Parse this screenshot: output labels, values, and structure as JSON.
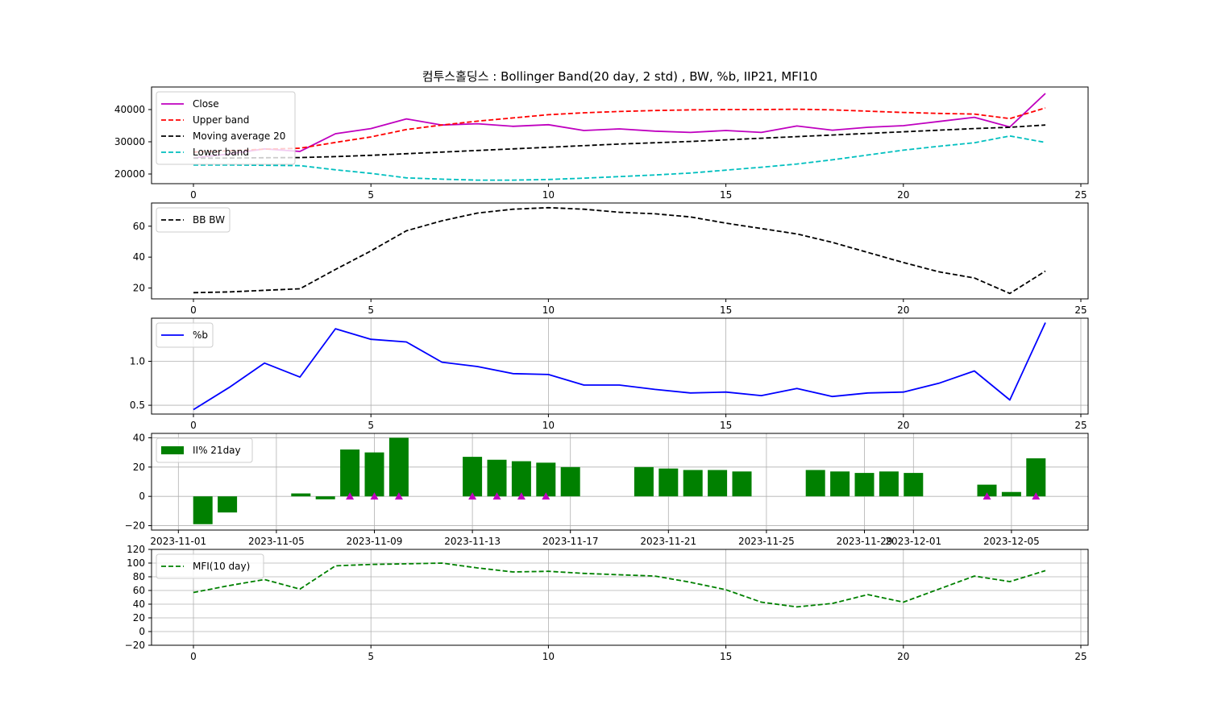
{
  "title": "컴투스홀딩스 : Bollinger Band(20 day, 2 std) , BW, %b, IIP21, MFI10",
  "colors": {
    "close": "#bf00bf",
    "upper": "#ff0000",
    "ma": "#000000",
    "lower": "#00bfbf",
    "bw": "#000000",
    "pb": "#0000ff",
    "ii": "#008000",
    "marker": "#bf00bf",
    "mfi": "#008000"
  },
  "chart_data": [
    {
      "type": "line",
      "x": [
        0,
        1,
        2,
        3,
        4,
        5,
        6,
        7,
        8,
        9,
        10,
        11,
        12,
        13,
        14,
        15,
        16,
        17,
        18,
        19,
        20,
        21,
        22,
        23,
        24
      ],
      "series": [
        {
          "name": "Close",
          "style": "solid",
          "values": [
            25000,
            26200,
            27800,
            27000,
            32500,
            34100,
            37100,
            35200,
            35600,
            34800,
            35300,
            33500,
            34000,
            33300,
            32900,
            33500,
            32900,
            34900,
            33600,
            34500,
            35000,
            36300,
            37600,
            34600,
            45000
          ]
        },
        {
          "name": "Upper band",
          "style": "dashed",
          "values": [
            26800,
            27200,
            27700,
            28000,
            29800,
            31500,
            33800,
            35200,
            36400,
            37400,
            38400,
            39000,
            39400,
            39700,
            39900,
            40000,
            40000,
            40100,
            39900,
            39500,
            39100,
            38800,
            38600,
            37200,
            40500
          ]
        },
        {
          "name": "Moving average 20",
          "style": "dashed",
          "values": [
            24900,
            24950,
            25050,
            25100,
            25400,
            25800,
            26300,
            26800,
            27300,
            27800,
            28300,
            28800,
            29300,
            29700,
            30100,
            30600,
            31100,
            31600,
            32100,
            32600,
            33100,
            33600,
            34100,
            34500,
            35200
          ]
        },
        {
          "name": "Lower band",
          "style": "dashed",
          "values": [
            22800,
            22800,
            22700,
            22600,
            21300,
            20200,
            18800,
            18400,
            18100,
            18100,
            18300,
            18700,
            19200,
            19700,
            20300,
            21200,
            22100,
            23100,
            24400,
            25900,
            27400,
            28600,
            29700,
            31800,
            29800
          ]
        }
      ],
      "ylim": [
        17000,
        47000
      ],
      "yticks": [
        "20000",
        "30000",
        "40000"
      ],
      "xticks": [
        "0",
        "5",
        "10",
        "15",
        "20",
        "25"
      ],
      "legend": "top-left",
      "grid": false
    },
    {
      "type": "line",
      "x": [
        0,
        1,
        2,
        3,
        4,
        5,
        6,
        7,
        8,
        9,
        10,
        11,
        12,
        13,
        14,
        15,
        16,
        17,
        18,
        19,
        20,
        21,
        22,
        23,
        24
      ],
      "series": [
        {
          "name": "BB BW",
          "style": "dashed",
          "values": [
            17,
            17.5,
            18.5,
            19.5,
            32,
            44,
            57,
            63.5,
            68.5,
            71,
            72,
            71,
            69,
            68,
            66,
            62,
            58.5,
            55,
            49.5,
            43,
            36.5,
            30.5,
            26.5,
            16.5,
            31
          ]
        }
      ],
      "ylim": [
        13,
        75
      ],
      "yticks": [
        "20",
        "40",
        "60"
      ],
      "xticks": [
        "0",
        "5",
        "10",
        "15",
        "20",
        "25"
      ],
      "legend": "top-left",
      "grid": false
    },
    {
      "type": "line",
      "x": [
        0,
        1,
        2,
        3,
        4,
        5,
        6,
        7,
        8,
        9,
        10,
        11,
        12,
        13,
        14,
        15,
        16,
        17,
        18,
        19,
        20,
        21,
        22,
        23,
        24
      ],
      "series": [
        {
          "name": "%b",
          "style": "solid",
          "values": [
            0.45,
            0.7,
            0.98,
            0.82,
            1.37,
            1.25,
            1.22,
            0.99,
            0.94,
            0.86,
            0.85,
            0.73,
            0.73,
            0.68,
            0.64,
            0.65,
            0.61,
            0.69,
            0.6,
            0.64,
            0.65,
            0.75,
            0.89,
            0.56,
            1.44
          ]
        }
      ],
      "ylim": [
        0.4,
        1.49
      ],
      "yticks": [
        "0.5",
        "1.0"
      ],
      "xticks": [
        "0",
        "5",
        "10",
        "15",
        "20",
        "25"
      ],
      "legend": "top-left",
      "grid": true
    },
    {
      "type": "bar",
      "series": [
        {
          "name": "II% 21day",
          "dates": [
            "2023-11-02",
            "2023-11-03",
            "2023-11-06",
            "2023-11-07",
            "2023-11-08",
            "2023-11-09",
            "2023-11-10",
            "2023-11-13",
            "2023-11-14",
            "2023-11-15",
            "2023-11-16",
            "2023-11-17",
            "2023-11-20",
            "2023-11-21",
            "2023-11-22",
            "2023-11-23",
            "2023-11-24",
            "2023-11-27",
            "2023-11-28",
            "2023-11-29",
            "2023-11-30",
            "2023-12-01",
            "2023-12-04",
            "2023-12-05",
            "2023-12-06"
          ],
          "values": [
            -19,
            -11,
            2,
            -2,
            32,
            30,
            40,
            27,
            25,
            24,
            23,
            20,
            20,
            19,
            18,
            18,
            17,
            18,
            17,
            16,
            17,
            16,
            8,
            3,
            26
          ]
        }
      ],
      "markers": [
        "2023-11-08",
        "2023-11-09",
        "2023-11-10",
        "2023-11-13",
        "2023-11-14",
        "2023-11-15",
        "2023-11-16",
        "2023-12-04",
        "2023-12-06"
      ],
      "ylim": [
        -23,
        43
      ],
      "yticks": [
        "−20",
        "0",
        "20",
        "40"
      ],
      "xticks": [
        "2023-11-01",
        "2023-11-05",
        "2023-11-09",
        "2023-11-13",
        "2023-11-17",
        "2023-11-21",
        "2023-11-25",
        "2023-11-29",
        "2023-12-01",
        "2023-12-05"
      ],
      "legend": "top-left",
      "grid": true
    },
    {
      "type": "line",
      "x": [
        0,
        1,
        2,
        3,
        4,
        5,
        6,
        7,
        8,
        9,
        10,
        11,
        12,
        13,
        14,
        15,
        16,
        17,
        18,
        19,
        20,
        21,
        22,
        23,
        24
      ],
      "series": [
        {
          "name": "MFI(10 day)",
          "style": "dashed",
          "values": [
            57,
            67,
            76,
            62,
            96,
            98,
            99,
            100,
            93,
            87,
            88,
            85,
            83,
            81,
            72,
            61,
            43,
            36,
            41,
            54,
            43,
            62,
            81,
            73,
            89
          ]
        }
      ],
      "ylim": [
        -20,
        120
      ],
      "yticks": [
        "−20",
        "0",
        "20",
        "40",
        "60",
        "80",
        "100",
        "120"
      ],
      "xticks": [
        "0",
        "5",
        "10",
        "15",
        "20",
        "25"
      ],
      "legend": "top-left",
      "grid": true
    }
  ]
}
